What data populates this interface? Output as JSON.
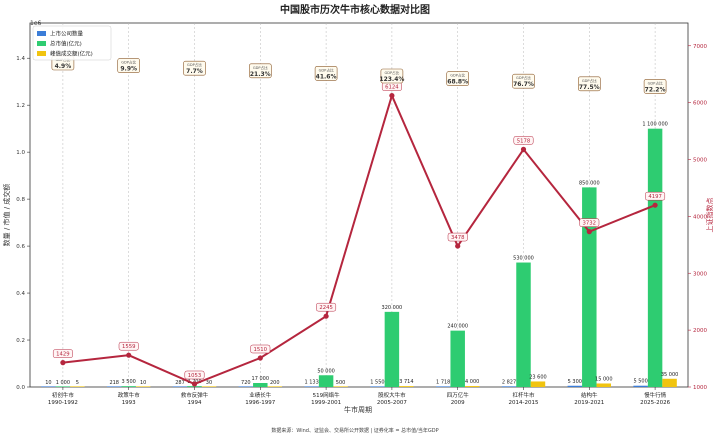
{
  "chart_data": {
    "type": "bar",
    "title": "中国股市历次牛市核心数据对比图",
    "xlabel": "牛市周期",
    "ylabel": "数量 / 市值 / 成交额",
    "y2label": "上证指数点",
    "y_exponent_label": "1e6",
    "ylim": [
      0,
      1550000
    ],
    "y_ticks": [
      "0.0",
      "0.2",
      "0.4",
      "0.6",
      "0.8",
      "1.0",
      "1.2",
      "1.4"
    ],
    "y2lim": [
      1000,
      7400
    ],
    "y2_ticks": [
      "1000",
      "2000",
      "3000",
      "4000",
      "5000",
      "6000",
      "7000"
    ],
    "grid": "x-dashed",
    "legend_position": "top-left",
    "footnote": "数据来源：Wind、证监会、交易所公开数据 | 证券化率 = 总市值/当年GDP",
    "categories": [
      [
        "初创牛市",
        "1990-1992"
      ],
      [
        "政策牛市",
        "1993"
      ],
      [
        "救市反弹牛",
        "1994"
      ],
      [
        "业绩长牛",
        "1996-1997"
      ],
      [
        "519网络牛",
        "1999-2001"
      ],
      [
        "股权大牛市",
        "2005-2007"
      ],
      [
        "四万亿牛",
        "2009"
      ],
      [
        "杠杆牛市",
        "2014-2015"
      ],
      [
        "结构牛",
        "2019-2021"
      ],
      [
        "慢牛行情",
        "2025-2026"
      ]
    ],
    "series": [
      {
        "name": "上市公司数量",
        "color": "#3b7dd8",
        "values": [
          10,
          218,
          287,
          720,
          1133,
          1550,
          1718,
          2827,
          5300,
          5500
        ],
        "labels": [
          "10",
          "218",
          "287",
          "720",
          "1 133",
          "1 550",
          "1 718",
          "2 827",
          "5 300",
          "5 500"
        ]
      },
      {
        "name": "总市值(亿元)",
        "color": "#2ecc71",
        "values": [
          1000,
          3500,
          3700,
          17000,
          50000,
          320000,
          240000,
          530000,
          850000,
          1100000
        ],
        "labels": [
          "1 000",
          "3 500",
          "3 700",
          "17 000",
          "50 000",
          "320 000",
          "240 000",
          "530 000",
          "850 000",
          "1 100 000"
        ]
      },
      {
        "name": "峰值成交额(亿元)",
        "color": "#f1c40f",
        "values": [
          5,
          10,
          30,
          200,
          500,
          3714,
          4000,
          23600,
          15000,
          35000
        ],
        "labels": [
          "5",
          "10",
          "30",
          "200",
          "500",
          "3 714",
          "4 000",
          "23 600",
          "15 000",
          "35 000"
        ]
      }
    ],
    "line_series": {
      "name": "上证指数",
      "color": "#b5263e",
      "values": [
        1429,
        1559,
        1053,
        1510,
        2245,
        6124,
        3478,
        5178,
        3732,
        4197
      ],
      "labels": [
        "1429",
        "1559",
        "1053",
        "1510",
        "2245",
        "6124",
        "3478",
        "5178",
        "3732",
        "4197"
      ]
    },
    "annotations": {
      "header": "GDP占比",
      "values": [
        "4.9%",
        "9.9%",
        "7.7%",
        "21.3%",
        "41.6%",
        "123.4%",
        "68.8%",
        "76.7%",
        "77.5%",
        "72.2%"
      ]
    }
  }
}
